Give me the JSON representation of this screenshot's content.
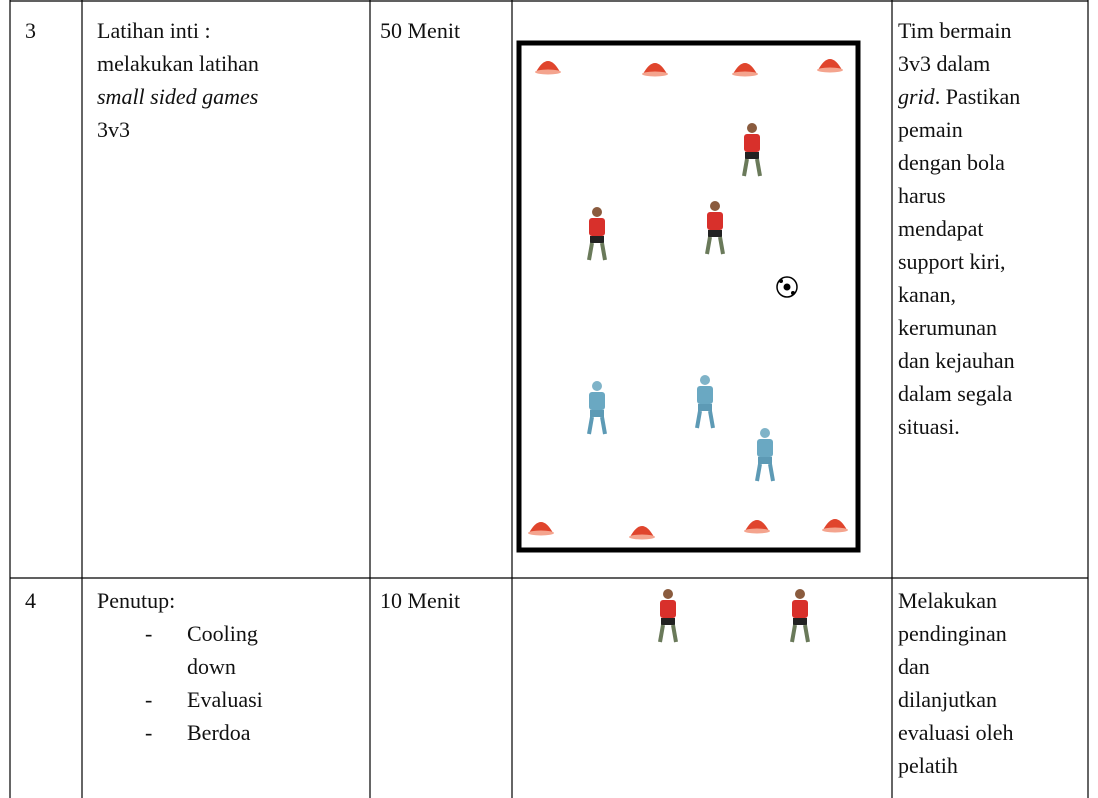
{
  "table": {
    "rows": [
      {
        "number": "3",
        "activity": [
          "Latihan inti :",
          "melakukan latihan",
          {
            "italic": "small sided games"
          },
          "3v3"
        ],
        "duration": "50 Menit",
        "description": [
          "Tim bermain",
          "3v3 dalam",
          {
            "italic": "grid",
            "text": ". Pastikan"
          },
          "pemain",
          "dengan bola",
          "harus",
          "mendapat",
          "support kiri,",
          "kanan,",
          "kerumunan",
          "dan kejauhan",
          "dalam segala",
          "situasi."
        ]
      },
      {
        "number": "4",
        "activity": [
          "Penutup:"
        ],
        "items": [
          "Cooling down",
          "Evaluasi",
          "Berdoa"
        ],
        "duration": "10 Menit",
        "description": [
          "Melakukan",
          "pendinginan",
          "dan",
          "dilanjutkan",
          "evaluasi oleh",
          "pelatih"
        ]
      }
    ]
  }
}
